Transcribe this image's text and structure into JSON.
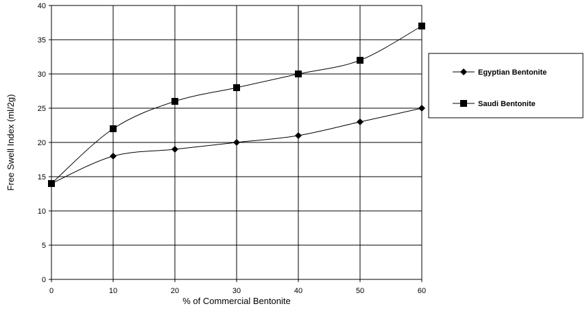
{
  "chart_data": {
    "type": "line",
    "title": "",
    "xlabel": "% of Commercial Bentonite",
    "ylabel": "Free Swell Index (ml/2g)",
    "x": [
      0,
      10,
      20,
      30,
      40,
      50,
      60
    ],
    "xlim": [
      0,
      60
    ],
    "ylim": [
      0,
      40
    ],
    "xticks": [
      0,
      10,
      20,
      30,
      40,
      50,
      60
    ],
    "yticks": [
      0,
      5,
      10,
      15,
      20,
      25,
      30,
      35,
      40
    ],
    "grid": true,
    "legend_position": "right",
    "series": [
      {
        "name": "Egyptian Bentonite",
        "marker": "diamond",
        "color": "#000000",
        "values": [
          14,
          18,
          19,
          20,
          21,
          23,
          25
        ]
      },
      {
        "name": "Saudi Bentonite",
        "marker": "square",
        "color": "#000000",
        "values": [
          14,
          22,
          26,
          28,
          30,
          32,
          37
        ]
      }
    ]
  }
}
